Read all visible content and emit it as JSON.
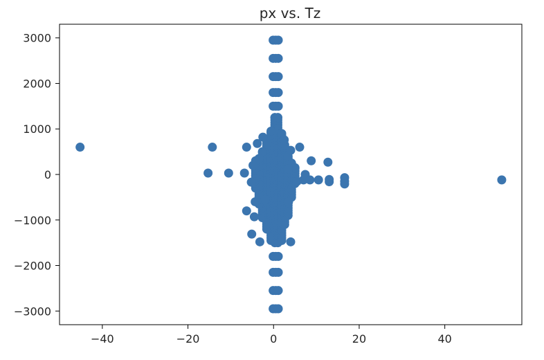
{
  "chart_data": {
    "type": "scatter",
    "title": "px vs. Tz",
    "xlabel": "",
    "ylabel": "",
    "xlim": [
      -50,
      58
    ],
    "ylim": [
      -3300,
      3300
    ],
    "grid": false,
    "marker_color": "#3b75af",
    "x_ticks": [
      -40,
      -20,
      0,
      20,
      40
    ],
    "y_ticks": [
      3000,
      2000,
      1000,
      0,
      -1000,
      -2000,
      -3000
    ],
    "x_tick_labels": [
      "−40",
      "−20",
      "0",
      "20",
      "40"
    ],
    "y_tick_labels": [
      "3000",
      "2000",
      "1000",
      "0",
      "−1000",
      "−2000",
      "−3000"
    ],
    "points": [
      {
        "x": -45.2,
        "y": 600
      },
      {
        "x": 53.3,
        "y": -120
      },
      {
        "x": -14.3,
        "y": 600
      },
      {
        "x": -15.3,
        "y": 30
      },
      {
        "x": -10.5,
        "y": 30
      },
      {
        "x": -6.3,
        "y": 600
      },
      {
        "x": -6.8,
        "y": 30
      },
      {
        "x": -6.3,
        "y": -800
      },
      {
        "x": -5.1,
        "y": -1310
      },
      {
        "x": -4.5,
        "y": -930
      },
      {
        "x": -4.3,
        "y": -600
      },
      {
        "x": -3.8,
        "y": 680
      },
      {
        "x": -5.2,
        "y": -170
      },
      {
        "x": -4.8,
        "y": 200
      },
      {
        "x": 6.1,
        "y": 600
      },
      {
        "x": 7.0,
        "y": -120
      },
      {
        "x": 7.4,
        "y": 0
      },
      {
        "x": 8.5,
        "y": -120
      },
      {
        "x": 8.8,
        "y": 300
      },
      {
        "x": 10.5,
        "y": -120
      },
      {
        "x": 12.7,
        "y": 270
      },
      {
        "x": 13.0,
        "y": -160
      },
      {
        "x": 13.0,
        "y": -110
      },
      {
        "x": 16.6,
        "y": -70
      },
      {
        "x": 16.6,
        "y": -150
      },
      {
        "x": 16.6,
        "y": -210
      },
      {
        "x": 5.5,
        "y": -150
      },
      {
        "x": 4.0,
        "y": -1480
      },
      {
        "x": 3.5,
        "y": 120
      },
      {
        "x": 4.0,
        "y": 530
      },
      {
        "x": 2.5,
        "y": 760
      },
      {
        "x": -2.5,
        "y": 820
      },
      {
        "x": -2.0,
        "y": -550
      },
      {
        "x": -3.2,
        "y": -1480
      },
      {
        "x": 3.5,
        "y": -600
      }
    ],
    "dense_columns": [
      {
        "x": 0.3,
        "ymin": -1500,
        "ymax": 1250
      },
      {
        "x": 1.0,
        "ymin": -1500,
        "ymax": 1250
      },
      {
        "x": -0.6,
        "ymin": -1450,
        "ymax": 950
      },
      {
        "x": 1.9,
        "ymin": -1450,
        "ymax": 900
      },
      {
        "x": -1.6,
        "ymin": -1200,
        "ymax": 700
      },
      {
        "x": 2.6,
        "ymin": -1100,
        "ymax": 650
      },
      {
        "x": -2.6,
        "ymin": -950,
        "ymax": 500
      },
      {
        "x": 3.4,
        "ymin": -900,
        "ymax": 400
      },
      {
        "x": -3.4,
        "ymin": -650,
        "ymax": 350
      },
      {
        "x": 4.2,
        "ymin": -500,
        "ymax": 250
      },
      {
        "x": -4.2,
        "ymin": -300,
        "ymax": 300
      },
      {
        "x": 5.0,
        "ymin": -200,
        "ymax": 150
      }
    ],
    "stacks": [
      {
        "y": 2950
      },
      {
        "y": 2550
      },
      {
        "y": 2150
      },
      {
        "y": 1800
      },
      {
        "y": 1500
      },
      {
        "y": -1800
      },
      {
        "y": -2150
      },
      {
        "y": -2550
      },
      {
        "y": -2950
      }
    ]
  }
}
